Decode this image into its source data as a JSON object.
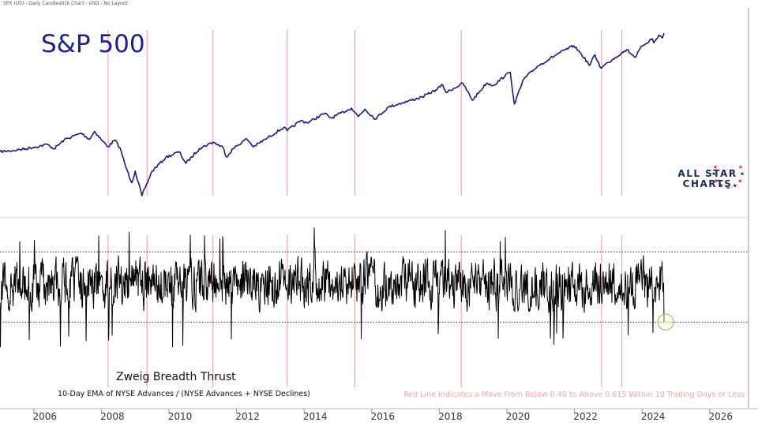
{
  "header": {
    "caption": "SPX (US) - Daily Candlestick Chart - USD - No Layout"
  },
  "logo": {
    "line1": "ALL STAR",
    "line2": "CHARTS"
  },
  "colors": {
    "price_line": "#1a1a80",
    "signal_line": "#f4a8a8",
    "indicator_line": "#000000",
    "background": "#ffffff"
  },
  "chart_data": [
    {
      "type": "line",
      "title": "S&P 500",
      "series": [
        {
          "values": [
            [
              2005.0,
              1200
            ],
            [
              2005.5,
              1225
            ],
            [
              2006.0,
              1270
            ],
            [
              2006.4,
              1320
            ],
            [
              2006.6,
              1245
            ],
            [
              2006.9,
              1400
            ],
            [
              2007.4,
              1530
            ],
            [
              2007.65,
              1410
            ],
            [
              2007.8,
              1565
            ],
            [
              2008.0,
              1400
            ],
            [
              2008.2,
              1280
            ],
            [
              2008.4,
              1400
            ],
            [
              2008.55,
              1260
            ],
            [
              2008.75,
              950
            ],
            [
              2008.9,
              800
            ],
            [
              2009.0,
              930
            ],
            [
              2009.2,
              676
            ],
            [
              2009.5,
              930
            ],
            [
              2009.9,
              1110
            ],
            [
              2010.3,
              1200
            ],
            [
              2010.5,
              1030
            ],
            [
              2010.9,
              1250
            ],
            [
              2011.3,
              1360
            ],
            [
              2011.6,
              1270
            ],
            [
              2011.7,
              1120
            ],
            [
              2011.9,
              1250
            ],
            [
              2012.3,
              1420
            ],
            [
              2012.5,
              1280
            ],
            [
              2012.9,
              1430
            ],
            [
              2013.4,
              1650
            ],
            [
              2013.5,
              1580
            ],
            [
              2013.9,
              1800
            ],
            [
              2014.1,
              1750
            ],
            [
              2014.6,
              1980
            ],
            [
              2014.8,
              1860
            ],
            [
              2015.4,
              2120
            ],
            [
              2015.6,
              1900
            ],
            [
              2015.8,
              2090
            ],
            [
              2016.1,
              1840
            ],
            [
              2016.5,
              2150
            ],
            [
              2016.9,
              2270
            ],
            [
              2017.5,
              2450
            ],
            [
              2017.9,
              2690
            ],
            [
              2018.1,
              2870
            ],
            [
              2018.2,
              2600
            ],
            [
              2018.7,
              2930
            ],
            [
              2018.98,
              2350
            ],
            [
              2019.4,
              2940
            ],
            [
              2019.6,
              2850
            ],
            [
              2019.95,
              3240
            ],
            [
              2020.1,
              3380
            ],
            [
              2020.22,
              2237
            ],
            [
              2020.5,
              3100
            ],
            [
              2020.9,
              3650
            ],
            [
              2021.5,
              4300
            ],
            [
              2021.98,
              4790
            ],
            [
              2022.2,
              4300
            ],
            [
              2022.45,
              3700
            ],
            [
              2022.6,
              4250
            ],
            [
              2022.78,
              3580
            ],
            [
              2023.0,
              3850
            ],
            [
              2023.2,
              4100
            ],
            [
              2023.55,
              4550
            ],
            [
              2023.8,
              4120
            ],
            [
              2024.0,
              4770
            ],
            [
              2024.3,
              5250
            ],
            [
              2024.35,
              4970
            ],
            [
              2024.5,
              5500
            ],
            [
              2024.6,
              5300
            ],
            [
              2024.65,
              5630
            ]
          ]
        }
      ],
      "vertical_lines_x": [
        2008.2,
        2009.35,
        2011.3,
        2013.5,
        2015.5,
        2018.65,
        2022.8,
        2023.4
      ],
      "ylim": [
        676,
        6000
      ],
      "scale": "log"
    },
    {
      "type": "line",
      "title": "Zweig Breadth Thrust",
      "subtitle": "10-Day EMA of NYSE Advances / (NYSE Advances + NYSE Declines)",
      "annotation": "Red Line Indicates a Move From Below 0.40 to Above 0.615 Within 10 Trading Days or Less",
      "reference_lines": [
        0.615,
        0.4
      ],
      "ylim": [
        0.2,
        0.7
      ],
      "x_range": [
        2005.0,
        2024.65
      ],
      "last_value": 0.4
    }
  ],
  "x_axis": {
    "range": [
      2005.0,
      2027.15
    ],
    "ticks": [
      {
        "value": 2006,
        "label": "2006"
      },
      {
        "value": 2008,
        "label": "2008"
      },
      {
        "value": 2010,
        "label": "2010"
      },
      {
        "value": 2012,
        "label": "2012"
      },
      {
        "value": 2014,
        "label": "2014"
      },
      {
        "value": 2016,
        "label": "2016"
      },
      {
        "value": 2018,
        "label": "2018"
      },
      {
        "value": 2020,
        "label": "2020"
      },
      {
        "value": 2022,
        "label": "2022"
      },
      {
        "value": 2024,
        "label": "2024"
      },
      {
        "value": 2026,
        "label": "2026"
      }
    ]
  }
}
